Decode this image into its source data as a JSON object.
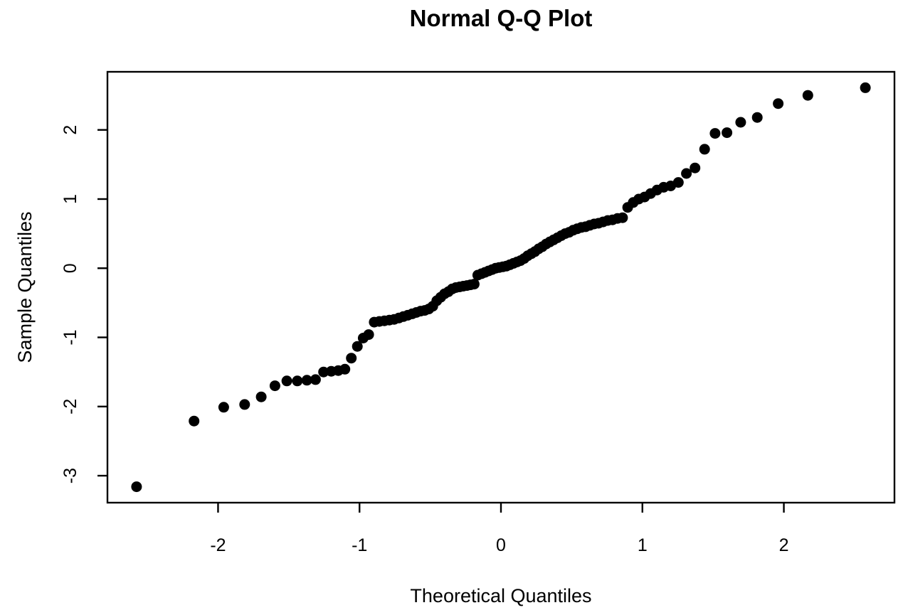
{
  "chart_data": {
    "type": "scatter",
    "title": "Normal Q-Q Plot",
    "xlabel": "Theoretical Quantiles",
    "ylabel": "Sample Quantiles",
    "x_ticks": [
      -2,
      -1,
      0,
      1,
      2
    ],
    "y_ticks": [
      -3,
      -2,
      -1,
      0,
      1,
      2
    ],
    "xlim": [
      -2.782,
      2.782
    ],
    "ylim": [
      -3.39,
      2.84
    ],
    "grid": false,
    "legend": "none",
    "point_color": "#000000",
    "background_color": "#ffffff",
    "points": [
      [
        -2.576,
        -3.16
      ],
      [
        -2.17,
        -2.21
      ],
      [
        -1.96,
        -2.01
      ],
      [
        -1.812,
        -1.97
      ],
      [
        -1.695,
        -1.86
      ],
      [
        -1.598,
        -1.7
      ],
      [
        -1.514,
        -1.63
      ],
      [
        -1.44,
        -1.63
      ],
      [
        -1.372,
        -1.62
      ],
      [
        -1.311,
        -1.61
      ],
      [
        -1.254,
        -1.5
      ],
      [
        -1.2,
        -1.49
      ],
      [
        -1.15,
        -1.48
      ],
      [
        -1.103,
        -1.46
      ],
      [
        -1.058,
        -1.3
      ],
      [
        -1.015,
        -1.13
      ],
      [
        -0.974,
        -1.01
      ],
      [
        -0.935,
        -0.96
      ],
      [
        -0.896,
        -0.78
      ],
      [
        -0.86,
        -0.77
      ],
      [
        -0.824,
        -0.76
      ],
      [
        -0.789,
        -0.75
      ],
      [
        -0.755,
        -0.74
      ],
      [
        -0.722,
        -0.72
      ],
      [
        -0.69,
        -0.7
      ],
      [
        -0.659,
        -0.68
      ],
      [
        -0.628,
        -0.66
      ],
      [
        -0.598,
        -0.64
      ],
      [
        -0.568,
        -0.62
      ],
      [
        -0.539,
        -0.61
      ],
      [
        -0.51,
        -0.59
      ],
      [
        -0.482,
        -0.55
      ],
      [
        -0.454,
        -0.47
      ],
      [
        -0.426,
        -0.42
      ],
      [
        -0.399,
        -0.37
      ],
      [
        -0.372,
        -0.34
      ],
      [
        -0.345,
        -0.3
      ],
      [
        -0.319,
        -0.28
      ],
      [
        -0.292,
        -0.27
      ],
      [
        -0.266,
        -0.26
      ],
      [
        -0.24,
        -0.25
      ],
      [
        -0.215,
        -0.24
      ],
      [
        -0.189,
        -0.23
      ],
      [
        -0.164,
        -0.1
      ],
      [
        -0.138,
        -0.08
      ],
      [
        -0.113,
        -0.06
      ],
      [
        -0.088,
        -0.04
      ],
      [
        -0.063,
        -0.02
      ],
      [
        -0.038,
        0
      ],
      [
        -0.013,
        0.01
      ],
      [
        0.013,
        0.02
      ],
      [
        0.038,
        0.03
      ],
      [
        0.063,
        0.05
      ],
      [
        0.088,
        0.07
      ],
      [
        0.113,
        0.09
      ],
      [
        0.138,
        0.11
      ],
      [
        0.164,
        0.14
      ],
      [
        0.189,
        0.18
      ],
      [
        0.215,
        0.21
      ],
      [
        0.24,
        0.24
      ],
      [
        0.266,
        0.28
      ],
      [
        0.292,
        0.31
      ],
      [
        0.319,
        0.35
      ],
      [
        0.345,
        0.38
      ],
      [
        0.372,
        0.41
      ],
      [
        0.399,
        0.44
      ],
      [
        0.426,
        0.47
      ],
      [
        0.454,
        0.5
      ],
      [
        0.482,
        0.52
      ],
      [
        0.51,
        0.55
      ],
      [
        0.539,
        0.57
      ],
      [
        0.568,
        0.59
      ],
      [
        0.598,
        0.6
      ],
      [
        0.628,
        0.62
      ],
      [
        0.659,
        0.64
      ],
      [
        0.69,
        0.65
      ],
      [
        0.722,
        0.67
      ],
      [
        0.755,
        0.69
      ],
      [
        0.789,
        0.7
      ],
      [
        0.824,
        0.72
      ],
      [
        0.86,
        0.73
      ],
      [
        0.896,
        0.88
      ],
      [
        0.935,
        0.95
      ],
      [
        0.974,
        1
      ],
      [
        1.015,
        1.03
      ],
      [
        1.058,
        1.08
      ],
      [
        1.103,
        1.13
      ],
      [
        1.15,
        1.17
      ],
      [
        1.2,
        1.19
      ],
      [
        1.254,
        1.24
      ],
      [
        1.311,
        1.37
      ],
      [
        1.372,
        1.45
      ],
      [
        1.44,
        1.72
      ],
      [
        1.514,
        1.95
      ],
      [
        1.598,
        1.96
      ],
      [
        1.695,
        2.11
      ],
      [
        1.812,
        2.18
      ],
      [
        1.96,
        2.38
      ],
      [
        2.17,
        2.5
      ],
      [
        2.576,
        2.61
      ]
    ]
  }
}
